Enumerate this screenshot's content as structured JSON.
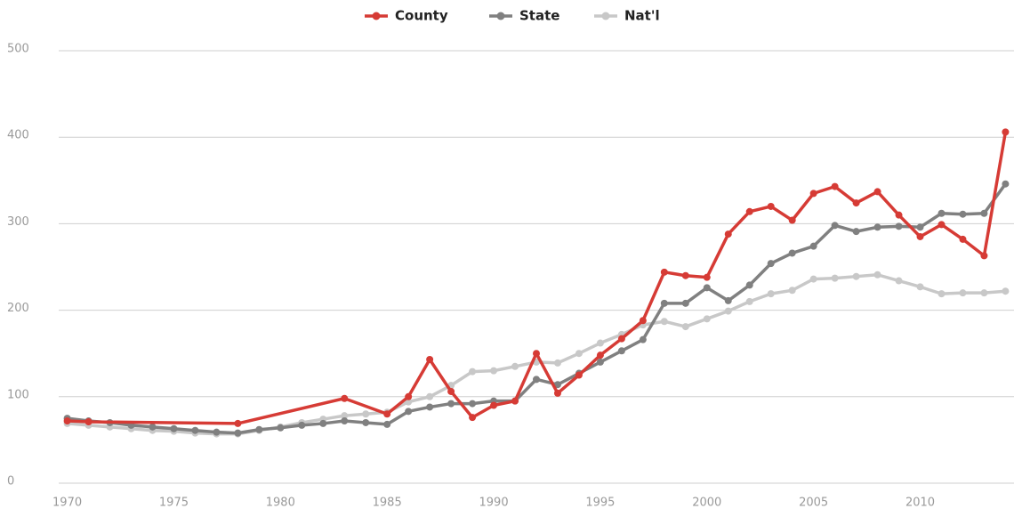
{
  "chart_data": {
    "type": "line",
    "x": [
      1970,
      1971,
      1972,
      1973,
      1974,
      1975,
      1976,
      1977,
      1978,
      1979,
      1980,
      1981,
      1982,
      1983,
      1984,
      1985,
      1986,
      1987,
      1988,
      1989,
      1990,
      1991,
      1992,
      1993,
      1994,
      1995,
      1996,
      1997,
      1998,
      1999,
      2000,
      2001,
      2002,
      2003,
      2004,
      2005,
      2006,
      2007,
      2008,
      2009,
      2010,
      2011,
      2012,
      2013,
      2014
    ],
    "series": [
      {
        "name": "County",
        "color": "#d63b35",
        "x": [
          1970,
          1971,
          1978,
          1983,
          1985,
          1986,
          1987,
          1988,
          1989,
          1990,
          1991,
          1992,
          1993,
          1994,
          1995,
          1996,
          1997,
          1998,
          1999,
          2000,
          2001,
          2002,
          2003,
          2004,
          2005,
          2006,
          2007,
          2008,
          2009,
          2010,
          2011,
          2012,
          2013,
          2014
        ],
        "values": [
          72,
          71,
          69,
          98,
          80,
          100,
          143,
          106,
          76,
          90,
          95,
          150,
          104,
          125,
          148,
          167,
          188,
          244,
          240,
          238,
          288,
          314,
          320,
          304,
          335,
          343,
          324,
          337,
          310,
          285,
          299,
          282,
          263,
          406
        ]
      },
      {
        "name": "State",
        "color": "#808080",
        "values": [
          75,
          72,
          70,
          67,
          65,
          63,
          61,
          59,
          58,
          62,
          64,
          67,
          69,
          72,
          70,
          68,
          83,
          88,
          92,
          92,
          95,
          95,
          120,
          114,
          127,
          140,
          153,
          166,
          208,
          208,
          226,
          211,
          229,
          254,
          266,
          274,
          298,
          291,
          296,
          297,
          296,
          312,
          311,
          312,
          346
        ]
      },
      {
        "name": "Nat'l",
        "color": "#c8c8c8",
        "values": [
          69,
          67,
          65,
          63,
          61,
          60,
          58,
          57,
          57,
          61,
          65,
          70,
          74,
          78,
          80,
          82,
          94,
          100,
          113,
          129,
          130,
          135,
          140,
          139,
          150,
          162,
          172,
          183,
          187,
          181,
          190,
          199,
          210,
          219,
          223,
          236,
          237,
          239,
          241,
          234,
          227,
          219,
          220,
          220,
          222
        ]
      }
    ],
    "xlim": [
      1969.6,
      2014.4
    ],
    "xticks": [
      1970,
      1975,
      1980,
      1985,
      1990,
      1995,
      2000,
      2005,
      2010
    ],
    "ylim": [
      0,
      500
    ],
    "yticks": [
      0,
      100,
      200,
      300,
      400,
      500
    ],
    "grid": true
  }
}
